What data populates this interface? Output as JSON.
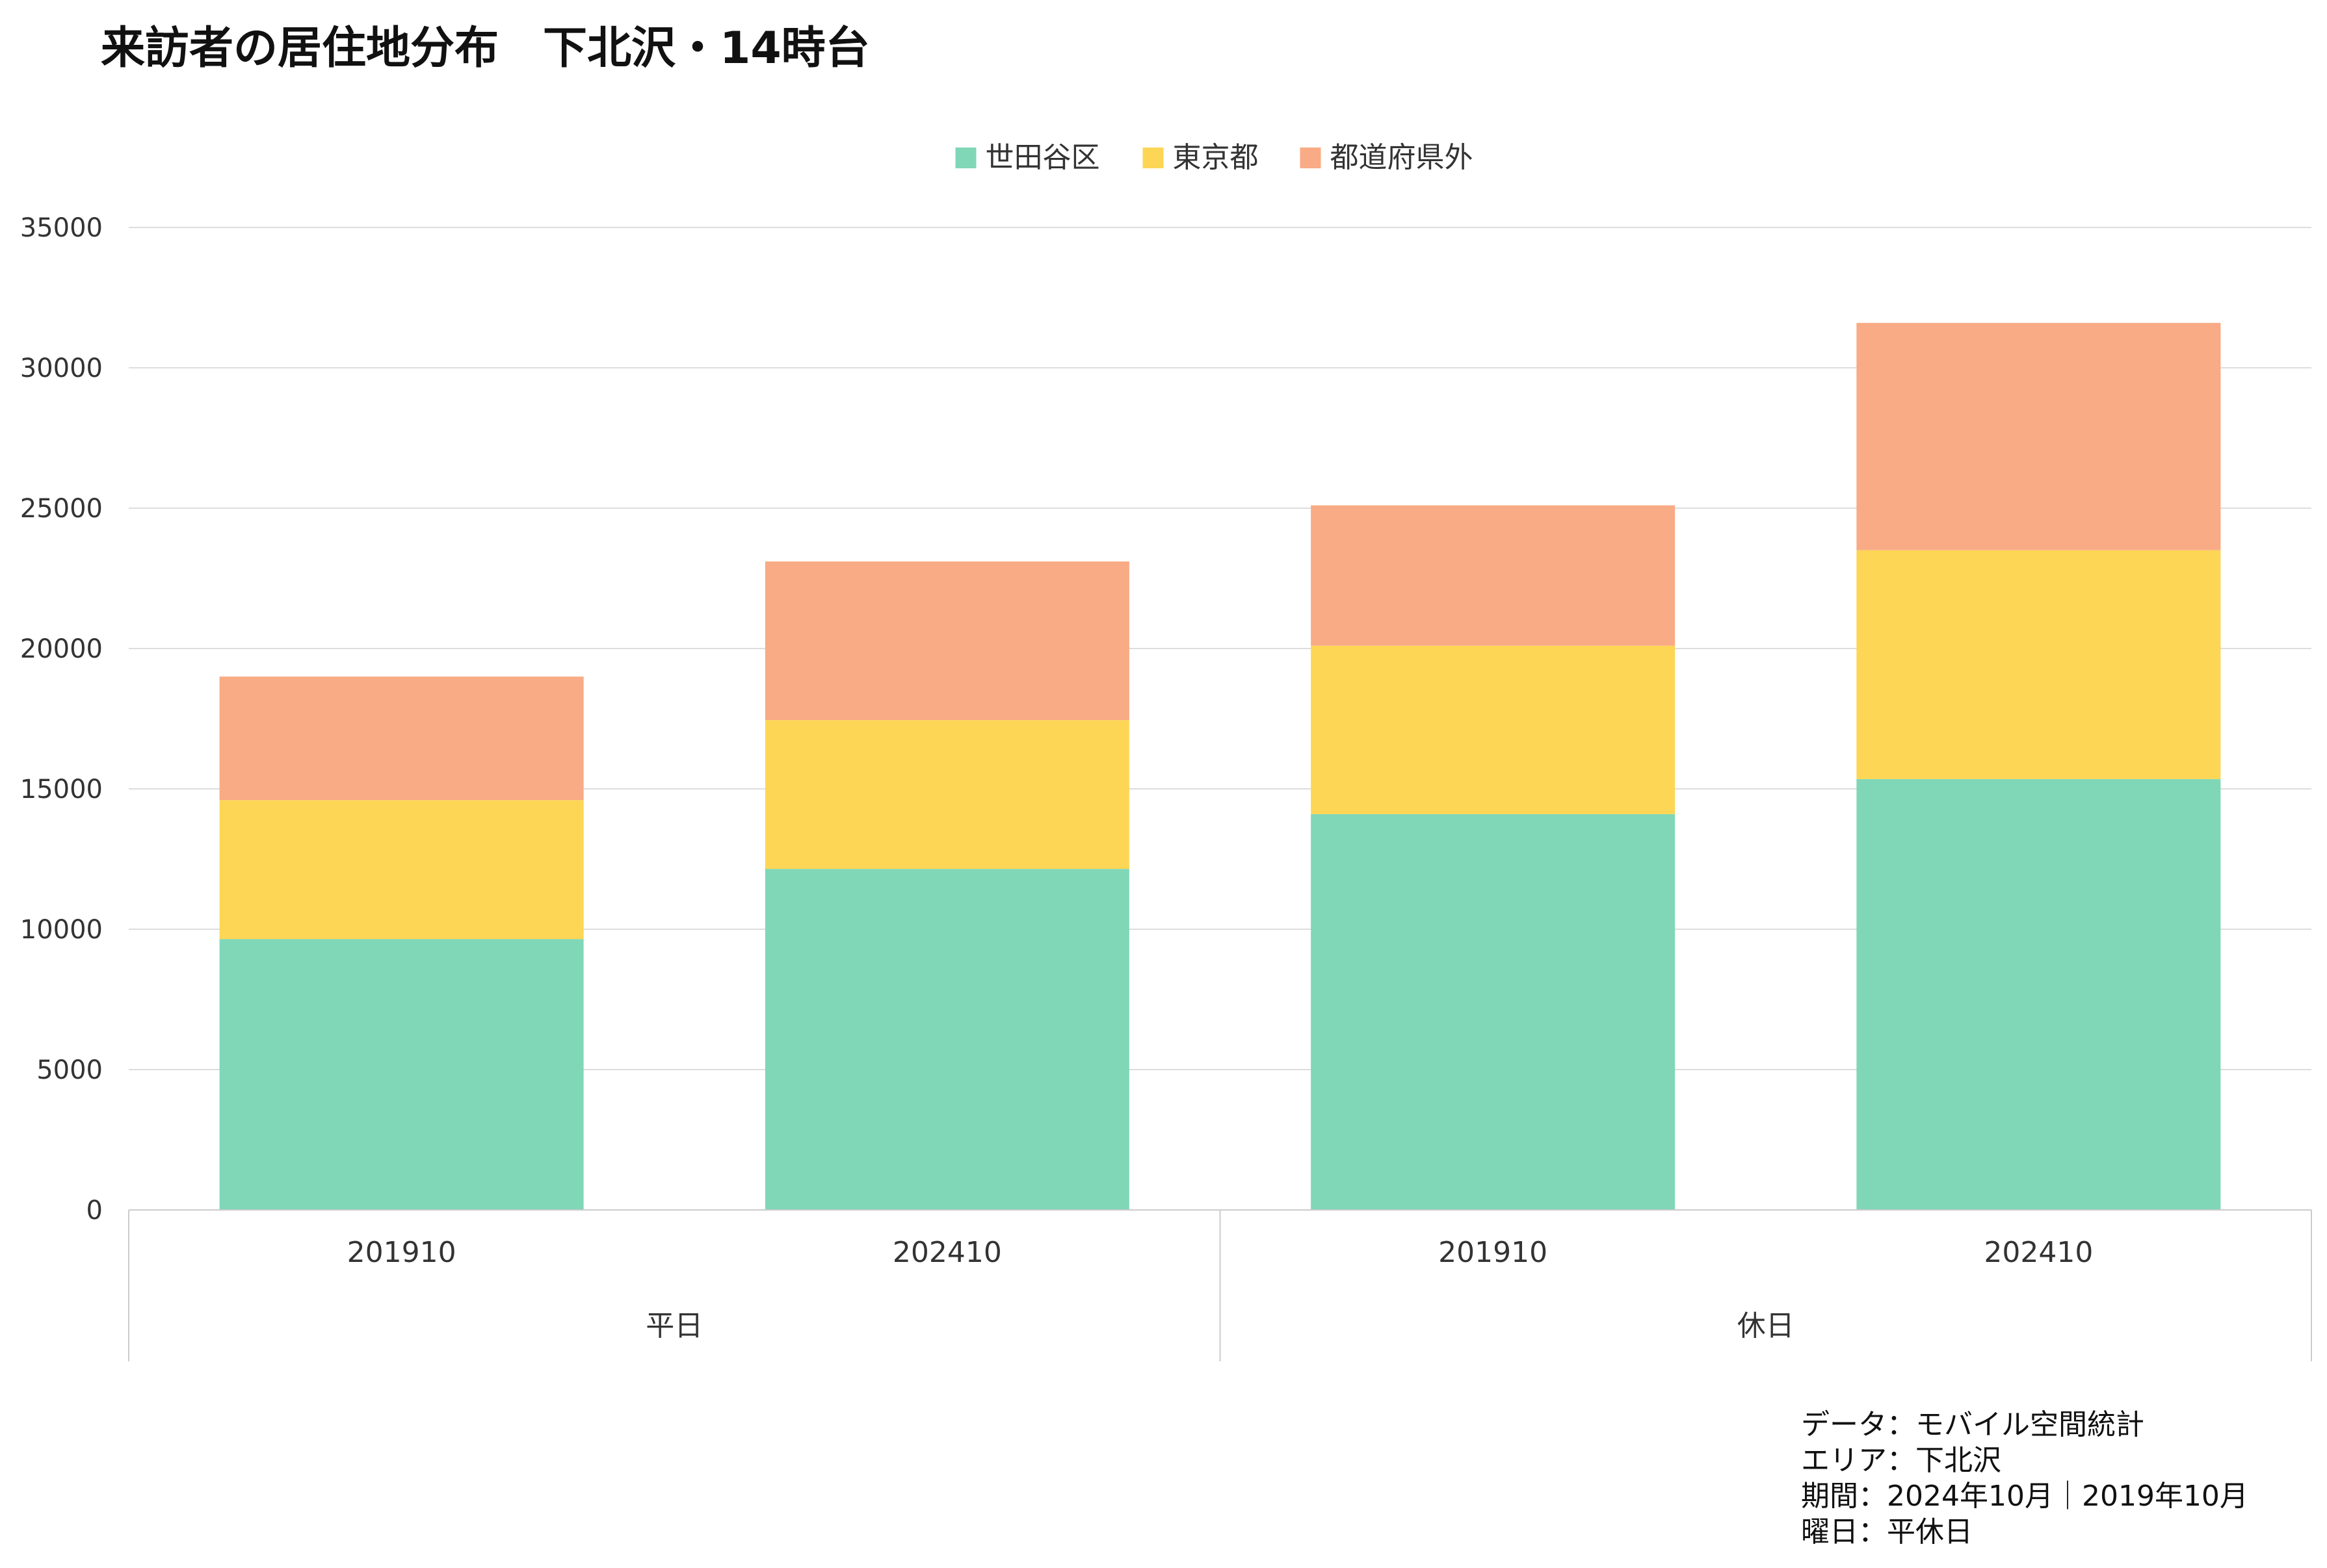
{
  "chart_data": {
    "type": "bar",
    "stacked": true,
    "title": "来訪者の居住地分布　下北沢・14時台",
    "groups": [
      {
        "label": "平日",
        "categories": [
          "201910",
          "202410"
        ]
      },
      {
        "label": "休日",
        "categories": [
          "201910",
          "202410"
        ]
      }
    ],
    "categories": [
      "201910",
      "202410",
      "201910",
      "202410"
    ],
    "series": [
      {
        "name": "世田谷区",
        "color": "#80d7b7",
        "values": [
          9650,
          12150,
          14100,
          15350
        ]
      },
      {
        "name": "東京都",
        "color": "#fdd655",
        "values": [
          4950,
          5300,
          6000,
          8150
        ]
      },
      {
        "name": "都道府県外",
        "color": "#f8ab85",
        "values": [
          4400,
          5650,
          5000,
          8100
        ]
      }
    ],
    "ylim": [
      0,
      35000
    ],
    "yticks": [
      0,
      5000,
      10000,
      15000,
      20000,
      25000,
      30000,
      35000
    ],
    "grid": true,
    "legend_position": "top-center"
  },
  "notes": [
    "データ：モバイル空間統計",
    "エリア：下北沢",
    "期間：2024年10月｜2019年10月",
    "曜日：平休日"
  ]
}
